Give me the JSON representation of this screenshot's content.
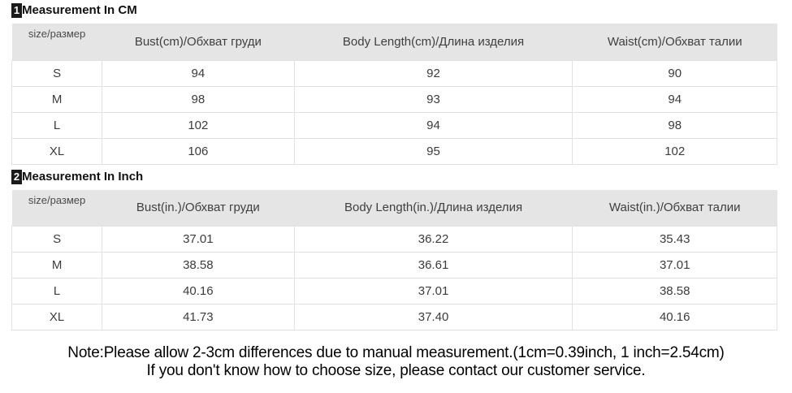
{
  "sections": [
    {
      "badge": "1",
      "title": "Measurement In CM",
      "table": {
        "headers": [
          "size/размер",
          "Bust(cm)/Обхват груди",
          "Body Length(cm)/Длина изделия",
          "Waist(cm)/Обхват талии"
        ],
        "rows": [
          [
            "S",
            "94",
            "92",
            "90"
          ],
          [
            "M",
            "98",
            "93",
            "94"
          ],
          [
            "L",
            "102",
            "94",
            "98"
          ],
          [
            "XL",
            "106",
            "95",
            "102"
          ]
        ]
      }
    },
    {
      "badge": "2",
      "title": "Measurement In Inch",
      "table": {
        "headers": [
          "size/размер",
          "Bust(in.)/Обхват груди",
          "Body Length(in.)/Длина изделия",
          "Waist(in.)/Обхват талии"
        ],
        "rows": [
          [
            "S",
            "37.01",
            "36.22",
            "35.43"
          ],
          [
            "M",
            "38.58",
            "36.61",
            "37.01"
          ],
          [
            "L",
            "40.16",
            "37.01",
            "38.58"
          ],
          [
            "XL",
            "41.73",
            "37.40",
            "40.16"
          ]
        ]
      }
    }
  ],
  "note": {
    "line1": "Note:Please allow 2-3cm differences due to manual measurement.(1cm=0.39inch, 1 inch=2.54cm)",
    "line2": "If you don't know how to choose size, please contact our customer service."
  },
  "colors": {
    "header_bg": "#e5e5e5",
    "border": "#e2e2e2",
    "badge_bg": "#1a1a1a"
  }
}
